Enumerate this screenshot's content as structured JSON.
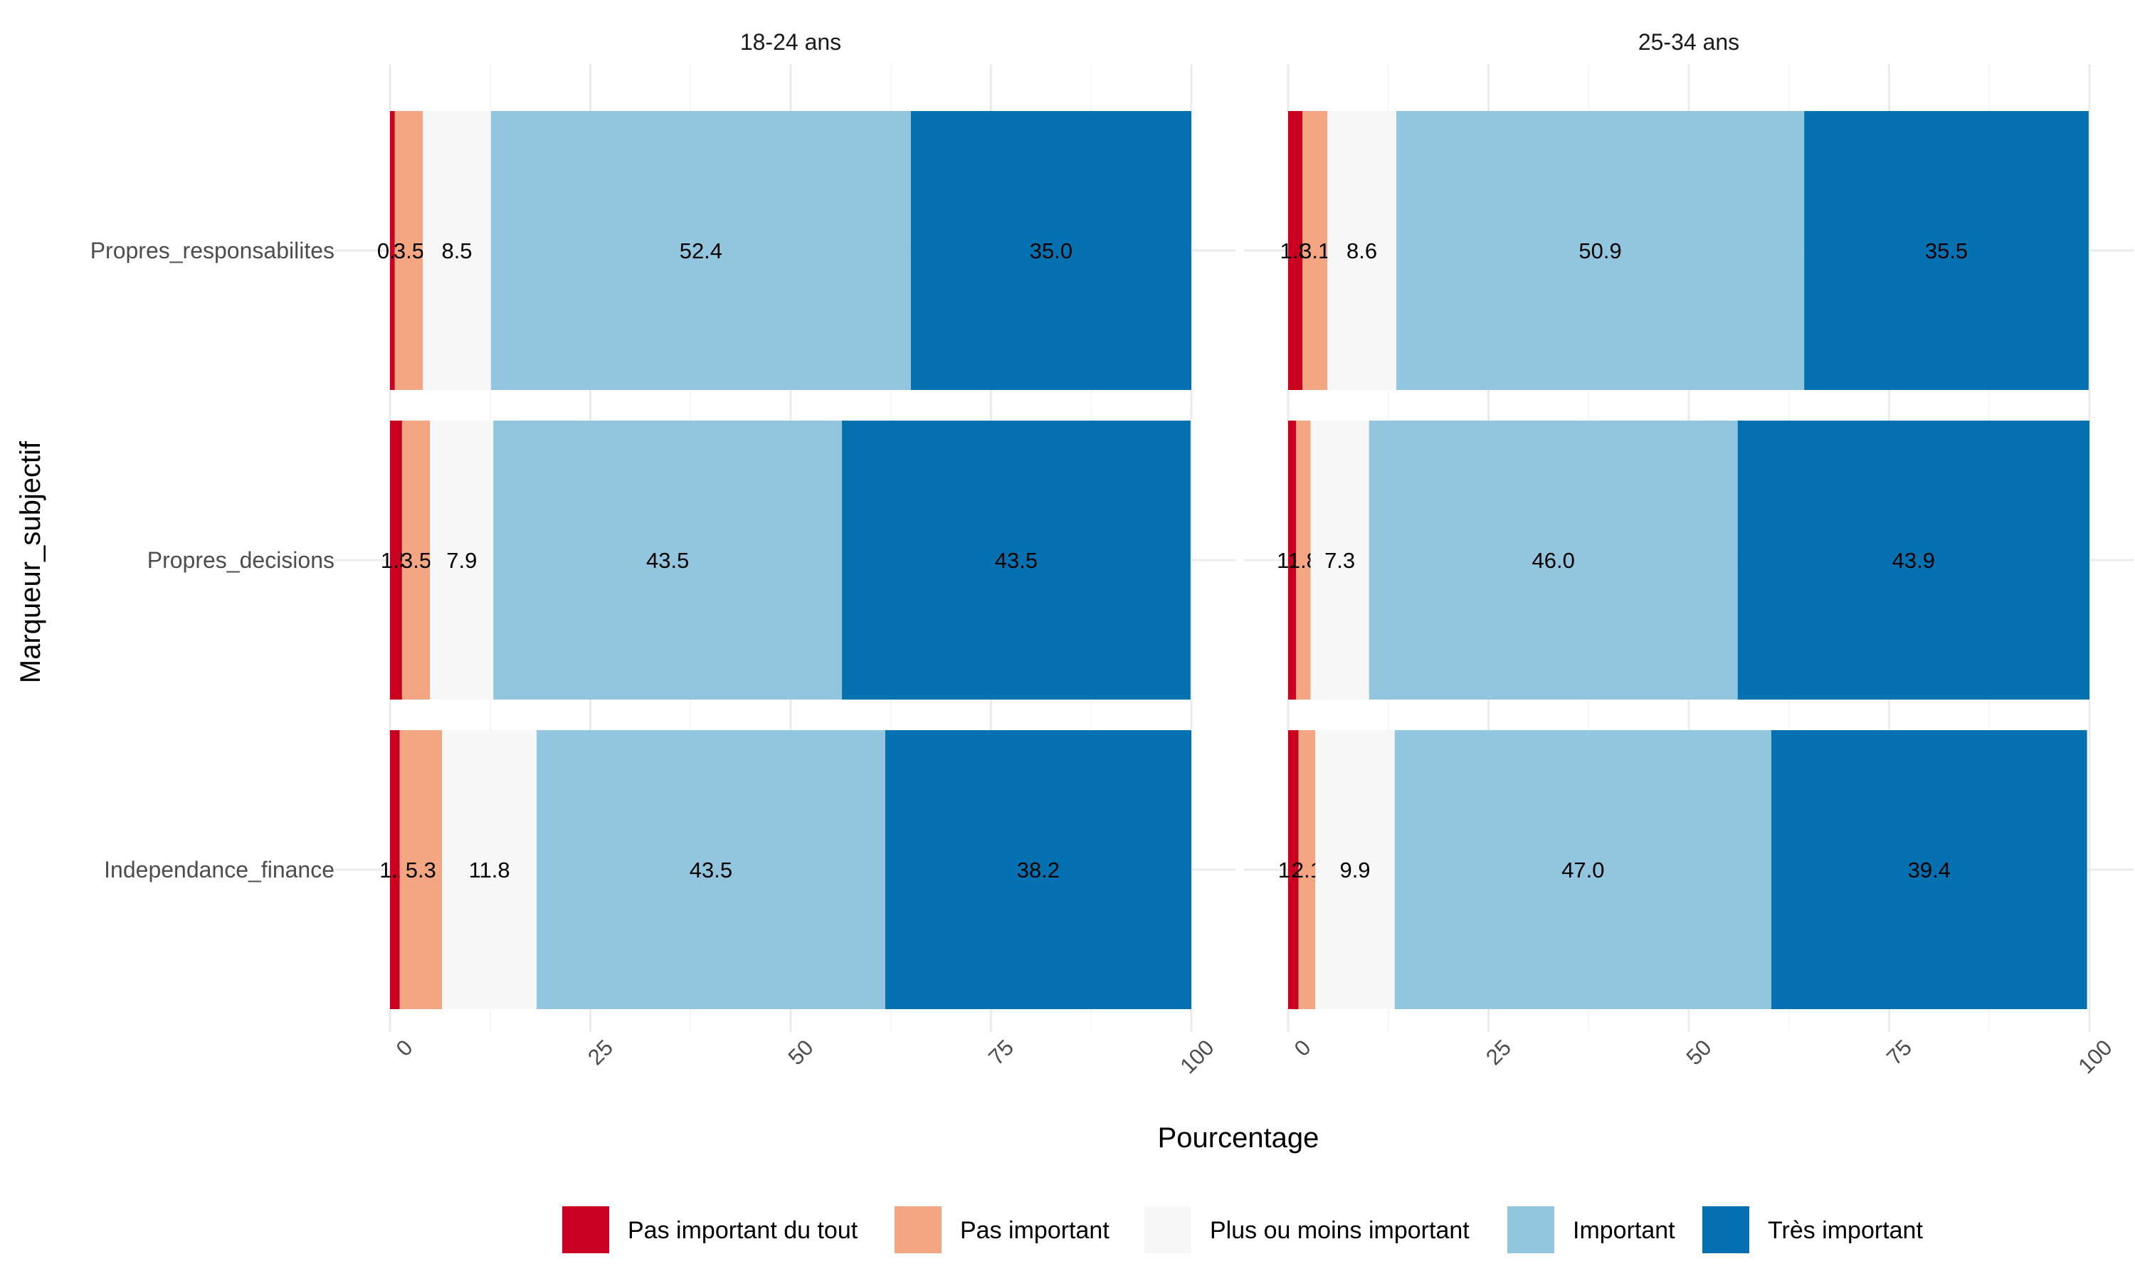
{
  "chart_data": {
    "type": "bar",
    "orientation": "horizontal",
    "stacked": true,
    "xlabel": "Pourcentage",
    "ylabel": "Marqueur_subjectif",
    "xlim": [
      0,
      100
    ],
    "x_ticks": [
      "0",
      "25",
      "50",
      "75",
      "100"
    ],
    "grid": true,
    "legend_position": "bottom",
    "categories": [
      "Propres_responsabilites",
      "Propres_decisions",
      "Independance_finance"
    ],
    "levels": [
      {
        "name": "Pas important du tout",
        "color": "#ca0020"
      },
      {
        "name": "Pas important",
        "color": "#f4a582"
      },
      {
        "name": "Plus ou moins important",
        "color": "#f7f7f7"
      },
      {
        "name": "Important",
        "color": "#92c5de"
      },
      {
        "name": "Très important",
        "color": "#0571b0"
      }
    ],
    "panels": [
      {
        "title": "18-24 ans",
        "rows": [
          {
            "values": [
              0.6,
              3.5,
              8.5,
              52.4,
              35.0
            ],
            "labels": [
              "0.6",
              "3.5",
              "8.5",
              "52.4",
              "35.0"
            ]
          },
          {
            "values": [
              1.5,
              3.5,
              7.9,
              43.5,
              43.5
            ],
            "labels": [
              "1.5",
              "3.5",
              "7.9",
              "43.5",
              "43.5"
            ]
          },
          {
            "values": [
              1.2,
              5.3,
              11.8,
              43.5,
              38.2
            ],
            "labels": [
              "1.2",
              "5.3",
              "11.8",
              "43.5",
              "38.2"
            ]
          }
        ]
      },
      {
        "title": "25-34 ans",
        "rows": [
          {
            "values": [
              1.8,
              3.1,
              8.6,
              50.9,
              35.5
            ],
            "labels": [
              "1.8",
              "3.1",
              "8.6",
              "50.9",
              "35.5"
            ]
          },
          {
            "values": [
              1.0,
              1.8,
              7.3,
              46.0,
              43.9
            ],
            "labels": [
              "1.0",
              "1.8",
              "7.3",
              "46.0",
              "43.9"
            ]
          },
          {
            "values": [
              1.3,
              2.1,
              9.9,
              47.0,
              39.4
            ],
            "labels": [
              "1.3",
              "2.1",
              "9.9",
              "47.0",
              "39.4"
            ]
          }
        ]
      }
    ]
  }
}
